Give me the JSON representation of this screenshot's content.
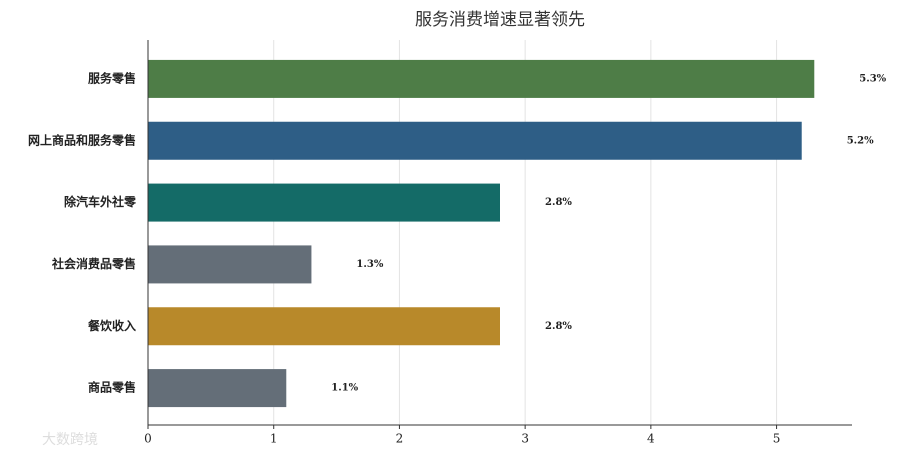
{
  "chart_data": {
    "type": "barh",
    "title": "服务消费增速显著领先",
    "categories": [
      "服务零售",
      "网上商品和服务零售",
      "除汽车外社零",
      "社会消费品零售",
      "餐饮收入",
      "商品零售"
    ],
    "values": [
      5.3,
      5.2,
      2.8,
      1.3,
      2.8,
      1.1
    ],
    "value_labels": [
      "5.3%",
      "5.2%",
      "2.8%",
      "1.3%",
      "2.8%",
      "1.1%"
    ],
    "colors": [
      "#4e7d47",
      "#2e5e86",
      "#146b67",
      "#646e78",
      "#b8892a",
      "#646e78"
    ],
    "xlim": [
      0,
      5.6
    ],
    "xticks": [
      0,
      1,
      2,
      3,
      4,
      5
    ],
    "grid": true,
    "watermark": "大数跨境"
  }
}
